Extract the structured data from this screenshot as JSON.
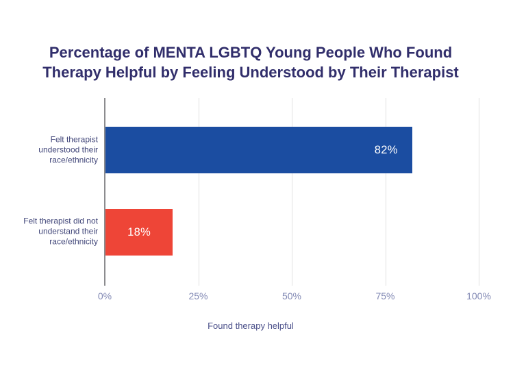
{
  "chart_data": {
    "type": "bar",
    "orientation": "horizontal",
    "title": "Percentage of MENTA LGBTQ Young People Who Found Therapy Helpful by Feeling Understood by Their Therapist",
    "title_lines": [
      "Percentage of MENTA LGBTQ Young People Who Found",
      "Therapy Helpful by Feeling Understood by Their Therapist"
    ],
    "xlabel": "Found therapy helpful",
    "ylabel": "",
    "xlim": [
      0,
      100
    ],
    "grid": "vertical",
    "legend": "none",
    "categories": [
      "Felt therapist understood their race/ethnicity",
      "Felt therapist did not understand their race/ethnicity"
    ],
    "category_lines": [
      [
        "Felt therapist",
        "understood their",
        "race/ethnicity"
      ],
      [
        "Felt therapist did not",
        "understand their",
        "race/ethnicity"
      ]
    ],
    "values": [
      82,
      18
    ],
    "value_labels": [
      "82%",
      "18%"
    ],
    "value_label_align": [
      "inside-right",
      "center"
    ],
    "bar_colors": [
      "#1b4da1",
      "#ee4537"
    ],
    "x_ticks": [
      {
        "value": 0,
        "label": "0%"
      },
      {
        "value": 25,
        "label": "25%"
      },
      {
        "value": 50,
        "label": "50%"
      },
      {
        "value": 75,
        "label": "75%"
      },
      {
        "value": 100,
        "label": "100%"
      }
    ],
    "colors": {
      "background": "#ffffff",
      "title": "#312e6b",
      "category_label": "#414679",
      "tick_label": "#8289b4",
      "axis_label": "#4b508a",
      "bar_value_text": "#ffffff",
      "gridline": "#e0e0e0",
      "axis_line": "#8c8c8f"
    }
  }
}
